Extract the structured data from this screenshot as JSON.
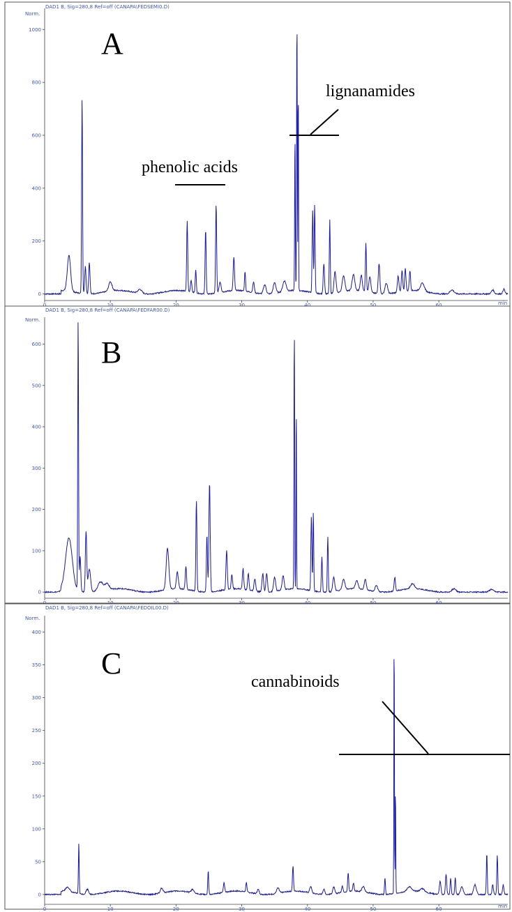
{
  "chart_data": [
    {
      "type": "line",
      "panel_label": "A",
      "header": "DAD1 B, Sig=280,8 Ref=off (CANAPA\\FEDSEMI0.D)",
      "yunit": "Norm.",
      "xunit": "min",
      "xlim": [
        0,
        70.5
      ],
      "ylim": [
        -25,
        1080
      ],
      "xticks": [
        0,
        10,
        20,
        30,
        40,
        50,
        60
      ],
      "yticks": [
        0,
        200,
        400,
        600,
        800,
        1000
      ],
      "baseline": 0,
      "peaks": [
        [
          3.7,
          135,
          0.25
        ],
        [
          5.7,
          740,
          0.07
        ],
        [
          6.2,
          105,
          0.1
        ],
        [
          6.8,
          120,
          0.1
        ],
        [
          10.0,
          35,
          0.25
        ],
        [
          14.5,
          15,
          0.3
        ],
        [
          21.7,
          265,
          0.08
        ],
        [
          22.3,
          45,
          0.1
        ],
        [
          23.0,
          90,
          0.08
        ],
        [
          24.5,
          245,
          0.08
        ],
        [
          26.1,
          335,
          0.08
        ],
        [
          26.7,
          40,
          0.15
        ],
        [
          28.8,
          125,
          0.1
        ],
        [
          30.5,
          75,
          0.08
        ],
        [
          31.8,
          40,
          0.12
        ],
        [
          33.5,
          35,
          0.2
        ],
        [
          35.0,
          40,
          0.2
        ],
        [
          36.5,
          40,
          0.25
        ],
        [
          38.1,
          600,
          0.05
        ],
        [
          38.4,
          1070,
          0.05
        ],
        [
          38.6,
          840,
          0.04
        ],
        [
          40.8,
          315,
          0.08
        ],
        [
          41.1,
          335,
          0.07
        ],
        [
          42.5,
          115,
          0.1
        ],
        [
          43.4,
          280,
          0.07
        ],
        [
          44.2,
          80,
          0.15
        ],
        [
          45.5,
          60,
          0.2
        ],
        [
          47.0,
          60,
          0.2
        ],
        [
          48.2,
          60,
          0.15
        ],
        [
          48.9,
          185,
          0.08
        ],
        [
          49.5,
          60,
          0.15
        ],
        [
          50.9,
          115,
          0.12
        ],
        [
          52.0,
          40,
          0.2
        ],
        [
          53.8,
          60,
          0.12
        ],
        [
          54.4,
          80,
          0.1
        ],
        [
          54.9,
          85,
          0.1
        ],
        [
          55.6,
          75,
          0.1
        ],
        [
          57.5,
          30,
          0.3
        ],
        [
          62.0,
          15,
          0.3
        ],
        [
          68.2,
          15,
          0.2
        ],
        [
          69.9,
          18,
          0.15
        ]
      ]
    },
    {
      "type": "line",
      "panel_label": "B",
      "header": "DAD1 B, Sig=280,8 Ref=off (CANAPA\\FEDFAR00.D)",
      "yunit": "Norm.",
      "xunit": "min",
      "xlim": [
        0,
        70.5
      ],
      "ylim": [
        -15,
        665
      ],
      "xticks": [
        0,
        10,
        20,
        30,
        40,
        50,
        60
      ],
      "yticks": [
        0,
        100,
        200,
        300,
        400,
        500,
        600
      ],
      "baseline": 0,
      "peaks": [
        [
          3.7,
          125,
          0.5
        ],
        [
          5.1,
          665,
          0.06
        ],
        [
          5.4,
          85,
          0.1
        ],
        [
          6.3,
          145,
          0.1
        ],
        [
          6.8,
          55,
          0.2
        ],
        [
          8.5,
          22,
          0.4
        ],
        [
          9.5,
          15,
          0.3
        ],
        [
          18.7,
          100,
          0.2
        ],
        [
          20.2,
          40,
          0.15
        ],
        [
          21.5,
          55,
          0.1
        ],
        [
          23.1,
          220,
          0.08
        ],
        [
          25.1,
          265,
          0.1
        ],
        [
          24.7,
          140,
          0.08
        ],
        [
          27.7,
          95,
          0.1
        ],
        [
          28.5,
          35,
          0.1
        ],
        [
          30.2,
          50,
          0.1
        ],
        [
          31.0,
          40,
          0.1
        ],
        [
          32.0,
          30,
          0.12
        ],
        [
          33.2,
          45,
          0.12
        ],
        [
          33.8,
          45,
          0.12
        ],
        [
          35.0,
          35,
          0.15
        ],
        [
          36.3,
          35,
          0.15
        ],
        [
          38.0,
          650,
          0.05
        ],
        [
          38.3,
          475,
          0.04
        ],
        [
          40.6,
          180,
          0.08
        ],
        [
          40.9,
          192,
          0.06
        ],
        [
          42.2,
          85,
          0.08
        ],
        [
          43.1,
          135,
          0.07
        ],
        [
          44.0,
          35,
          0.15
        ],
        [
          45.5,
          25,
          0.2
        ],
        [
          47.5,
          20,
          0.2
        ],
        [
          48.8,
          25,
          0.15
        ],
        [
          50.5,
          15,
          0.2
        ],
        [
          53.3,
          33,
          0.1
        ],
        [
          56.0,
          12,
          0.3
        ],
        [
          62.3,
          8,
          0.3
        ],
        [
          68.0,
          6,
          0.3
        ]
      ]
    },
    {
      "type": "line",
      "panel_label": "C",
      "header": "DAD1 B, Sig=280,8 Ref=off (CANAPA\\FEDOIL00.D)",
      "yunit": "Norm.",
      "xunit": "min",
      "xlim": [
        0,
        70.5
      ],
      "ylim": [
        -15,
        425
      ],
      "xticks": [
        0,
        10,
        20,
        30,
        40,
        50,
        60
      ],
      "yticks": [
        0,
        50,
        100,
        150,
        200,
        250,
        300,
        350,
        400
      ],
      "baseline": 0,
      "peaks": [
        [
          3.5,
          7,
          0.3
        ],
        [
          5.2,
          78,
          0.06
        ],
        [
          6.5,
          8,
          0.2
        ],
        [
          17.8,
          7,
          0.2
        ],
        [
          22.5,
          5,
          0.2
        ],
        [
          24.9,
          36,
          0.07
        ],
        [
          27.3,
          15,
          0.1
        ],
        [
          30.7,
          15,
          0.08
        ],
        [
          32.5,
          7,
          0.15
        ],
        [
          35.5,
          8,
          0.2
        ],
        [
          37.8,
          38,
          0.08
        ],
        [
          40.5,
          10,
          0.15
        ],
        [
          42.5,
          8,
          0.15
        ],
        [
          44.0,
          10,
          0.15
        ],
        [
          45.3,
          10,
          0.1
        ],
        [
          46.2,
          28,
          0.08
        ],
        [
          47.0,
          12,
          0.1
        ],
        [
          48.5,
          8,
          0.2
        ],
        [
          51.8,
          25,
          0.07
        ],
        [
          53.2,
          420,
          0.04
        ],
        [
          53.4,
          170,
          0.04
        ],
        [
          55.5,
          7,
          0.3
        ],
        [
          57.5,
          5,
          0.3
        ],
        [
          60.2,
          20,
          0.12
        ],
        [
          61.1,
          30,
          0.1
        ],
        [
          61.8,
          25,
          0.08
        ],
        [
          62.5,
          25,
          0.08
        ],
        [
          63.5,
          12,
          0.2
        ],
        [
          65.5,
          15,
          0.2
        ],
        [
          67.3,
          63,
          0.07
        ],
        [
          68.2,
          15,
          0.1
        ],
        [
          68.9,
          60,
          0.07
        ],
        [
          69.8,
          15,
          0.1
        ]
      ]
    }
  ],
  "annotations": {
    "phenolic": "phenolic acids",
    "lignanamides": "lignanamides",
    "cannabinoids": "cannabinoids"
  },
  "style": {
    "trace_color": "#1a1aa8",
    "axis_label_color": "#3a56c8",
    "annotation_color": "#000000"
  }
}
